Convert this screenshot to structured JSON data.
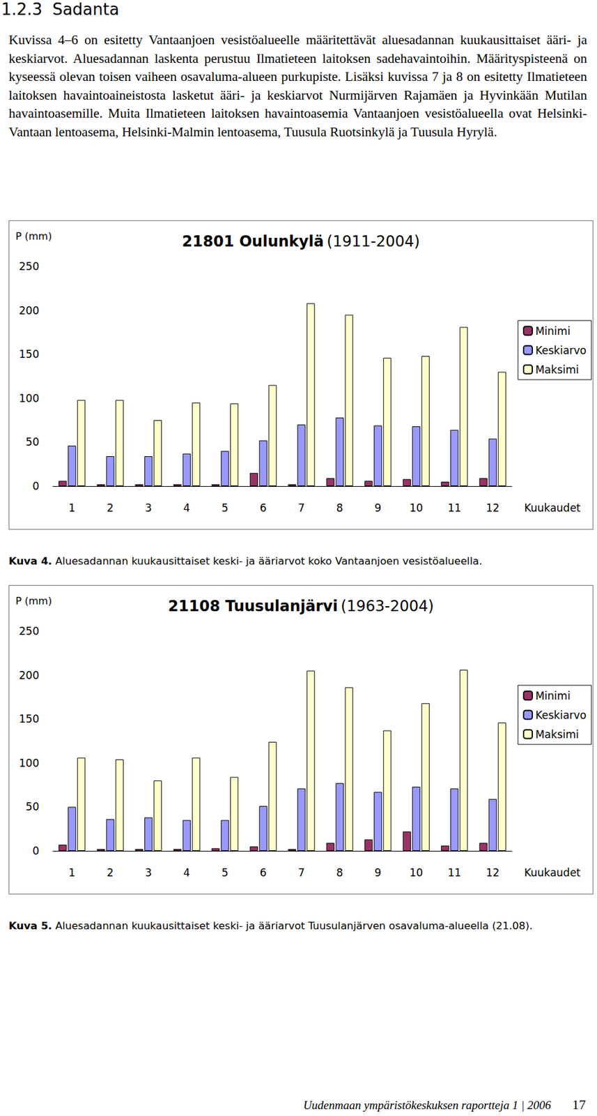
{
  "section": {
    "number": "1.2.3",
    "title": "Sadanta"
  },
  "paragraph": "Kuvissa 4–6 on esitetty Vantaanjoen vesistöalueelle määritettävät aluesadannan kuukausittaiset ääri- ja keskiarvot. Aluesadannan laskenta perustuu Ilmatieteen laitoksen sadehavaintoihin. Määrityspisteenä on kyseessä olevan toisen vaiheen osavaluma-alueen purkupiste. Lisäksi kuvissa 7 ja 8 on esitetty Ilmatieteen laitoksen havaintoaineistosta lasketut ääri- ja keskiarvot Nurmijärven Rajamäen ja Hyvinkään Mutilan havaintoasemille. Muita Ilmatieteen laitoksen havaintoasemia Vantaanjoen vesistöalueella ovat Helsinki-Vantaan lentoasema, Helsinki-Malmin lentoasema, Tuusula Ruotsinkylä ja Tuusula Hyrylä.",
  "chart_data": [
    {
      "type": "bar",
      "title": "21801 Oulunkylä",
      "subtitle": "(1911-2004)",
      "ylabel": "P (mm)",
      "xlabel": "Kuukaudet",
      "categories": [
        "1",
        "2",
        "3",
        "4",
        "5",
        "6",
        "7",
        "8",
        "9",
        "10",
        "11",
        "12"
      ],
      "series": [
        {
          "name": "Minimi",
          "color": "#993366",
          "values": [
            6,
            2,
            2,
            2,
            2,
            15,
            2,
            9,
            6,
            8,
            5,
            9
          ]
        },
        {
          "name": "Keskiarvo",
          "color": "#9999ff",
          "values": [
            46,
            34,
            34,
            37,
            40,
            52,
            70,
            78,
            69,
            68,
            64,
            54
          ]
        },
        {
          "name": "Maksimi",
          "color": "#ffffcc",
          "values": [
            98,
            98,
            75,
            95,
            94,
            115,
            208,
            195,
            146,
            148,
            181,
            130
          ]
        }
      ],
      "ylim": [
        0,
        250
      ],
      "yticks": [
        0,
        50,
        100,
        150,
        200,
        250
      ],
      "grid": false,
      "legend": "right"
    },
    {
      "type": "bar",
      "title": "21108 Tuusulanjärvi",
      "subtitle": "(1963-2004)",
      "ylabel": "P (mm)",
      "xlabel": "Kuukaudet",
      "categories": [
        "1",
        "2",
        "3",
        "4",
        "5",
        "6",
        "7",
        "8",
        "9",
        "10",
        "11",
        "12"
      ],
      "series": [
        {
          "name": "Minimi",
          "color": "#993366",
          "values": [
            7,
            2,
            2,
            2,
            3,
            5,
            2,
            9,
            13,
            22,
            6,
            9
          ]
        },
        {
          "name": "Keskiarvo",
          "color": "#9999ff",
          "values": [
            50,
            36,
            38,
            35,
            35,
            51,
            71,
            77,
            67,
            73,
            71,
            59
          ]
        },
        {
          "name": "Maksimi",
          "color": "#ffffcc",
          "values": [
            106,
            104,
            80,
            106,
            84,
            124,
            205,
            186,
            137,
            168,
            206,
            146
          ]
        }
      ],
      "ylim": [
        0,
        250
      ],
      "yticks": [
        0,
        50,
        100,
        150,
        200,
        250
      ],
      "grid": false,
      "legend": "right"
    }
  ],
  "captions": [
    {
      "label": "Kuva 4.",
      "text": "Aluesadannan kuukausittaiset keski- ja ääriarvot koko Vantaanjoen vesistöalueella."
    },
    {
      "label": "Kuva 5.",
      "text": "Aluesadannan kuukausittaiset keski- ja ääriarvot Tuusulanjärven osavaluma-alueella (21.08)."
    }
  ],
  "footer": {
    "text": "Uudenmaan ympäristökeskuksen raportteja 1 | 2006",
    "page": 17
  }
}
